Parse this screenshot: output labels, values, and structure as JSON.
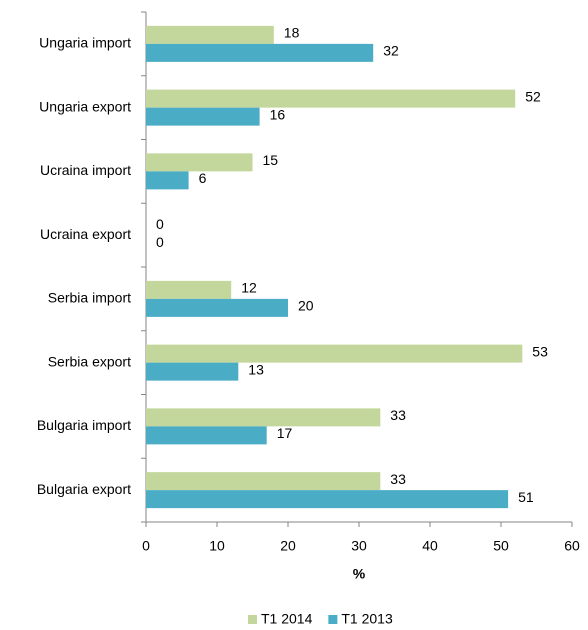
{
  "chart_data": {
    "type": "bar",
    "orientation": "horizontal",
    "categories": [
      "Ungaria import",
      "Ungaria export",
      "Ucraina import",
      "Ucraina export",
      "Serbia import",
      "Serbia export",
      "Bulgaria import",
      "Bulgaria export"
    ],
    "series": [
      {
        "name": "T1 2014",
        "color": "#c3d69b",
        "values": [
          18,
          52,
          15,
          0,
          12,
          53,
          33,
          33
        ]
      },
      {
        "name": "T1 2013",
        "color": "#4bacc6",
        "values": [
          32,
          16,
          6,
          0,
          20,
          13,
          17,
          51
        ]
      }
    ],
    "xlabel": "%",
    "xlim": [
      0,
      60
    ],
    "xticks": [
      0,
      10,
      20,
      30,
      40,
      50,
      60
    ],
    "grid": false,
    "legend": "bottom"
  }
}
